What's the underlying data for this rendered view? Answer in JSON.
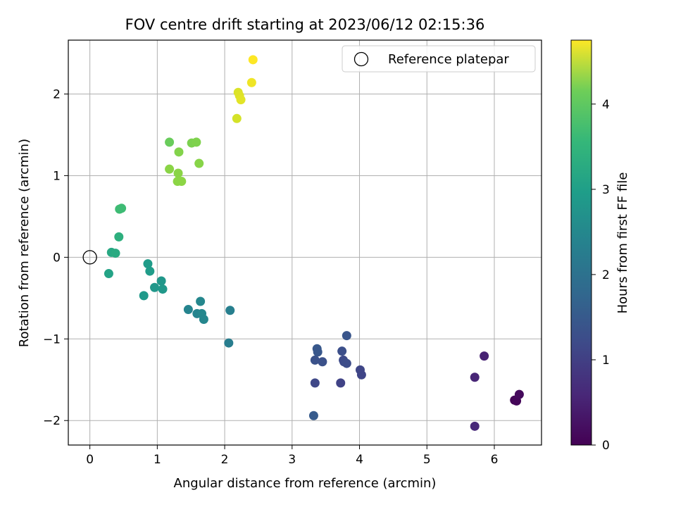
{
  "chart_data": {
    "type": "scatter",
    "title": "FOV centre drift starting at 2023/06/12 02:15:36",
    "xlabel": "Angular distance from reference (arcmin)",
    "ylabel": "Rotation from reference (arcmin)",
    "xlim": [
      -0.32,
      6.7
    ],
    "ylim": [
      -2.3,
      2.66
    ],
    "xticks": [
      0,
      1,
      2,
      3,
      4,
      5,
      6
    ],
    "yticks": [
      -2,
      -1,
      0,
      1,
      2
    ],
    "grid": true,
    "legend": {
      "placement": "top-right",
      "entries": [
        "Reference platepar"
      ]
    },
    "colorbar": {
      "label": "Hours from first FF file",
      "range": [
        0,
        4.75
      ],
      "ticks": [
        0,
        1,
        2,
        3,
        4
      ],
      "colormap": "viridis"
    },
    "reference_point": {
      "x": 0,
      "y": 0
    },
    "points": [
      {
        "x": 6.3,
        "y": -1.75,
        "h": 0.05
      },
      {
        "x": 6.33,
        "y": -1.76,
        "h": 0.08
      },
      {
        "x": 6.37,
        "y": -1.68,
        "h": 0.12
      },
      {
        "x": 5.85,
        "y": -1.21,
        "h": 0.45
      },
      {
        "x": 5.71,
        "y": -1.47,
        "h": 0.5
      },
      {
        "x": 5.71,
        "y": -2.07,
        "h": 0.55
      },
      {
        "x": 3.81,
        "y": -0.96,
        "h": 1.25
      },
      {
        "x": 3.74,
        "y": -1.15,
        "h": 1.15
      },
      {
        "x": 3.37,
        "y": -1.12,
        "h": 1.3
      },
      {
        "x": 3.38,
        "y": -1.16,
        "h": 1.28
      },
      {
        "x": 3.34,
        "y": -1.26,
        "h": 1.2
      },
      {
        "x": 3.45,
        "y": -1.28,
        "h": 1.18
      },
      {
        "x": 3.76,
        "y": -1.26,
        "h": 1.05
      },
      {
        "x": 3.77,
        "y": -1.28,
        "h": 1.08
      },
      {
        "x": 3.81,
        "y": -1.3,
        "h": 1.1
      },
      {
        "x": 4.01,
        "y": -1.38,
        "h": 1.0
      },
      {
        "x": 4.03,
        "y": -1.44,
        "h": 0.98
      },
      {
        "x": 3.72,
        "y": -1.54,
        "h": 0.95
      },
      {
        "x": 3.34,
        "y": -1.54,
        "h": 1.02
      },
      {
        "x": 3.32,
        "y": -1.94,
        "h": 1.35
      },
      {
        "x": 2.08,
        "y": -0.65,
        "h": 2.05
      },
      {
        "x": 2.06,
        "y": -1.05,
        "h": 2.0
      },
      {
        "x": 1.46,
        "y": -0.64,
        "h": 2.15
      },
      {
        "x": 1.59,
        "y": -0.69,
        "h": 2.15
      },
      {
        "x": 1.64,
        "y": -0.54,
        "h": 2.2
      },
      {
        "x": 1.66,
        "y": -0.69,
        "h": 2.2
      },
      {
        "x": 1.69,
        "y": -0.76,
        "h": 2.18
      },
      {
        "x": 1.06,
        "y": -0.29,
        "h": 2.5
      },
      {
        "x": 0.96,
        "y": -0.37,
        "h": 2.5
      },
      {
        "x": 1.08,
        "y": -0.39,
        "h": 2.52
      },
      {
        "x": 0.8,
        "y": -0.47,
        "h": 2.55
      },
      {
        "x": 0.86,
        "y": -0.08,
        "h": 2.6
      },
      {
        "x": 0.89,
        "y": -0.17,
        "h": 2.6
      },
      {
        "x": 0.28,
        "y": -0.2,
        "h": 2.75
      },
      {
        "x": 0.32,
        "y": 0.06,
        "h": 2.85
      },
      {
        "x": 0.38,
        "y": 0.05,
        "h": 2.9
      },
      {
        "x": 0.43,
        "y": 0.25,
        "h": 3.0
      },
      {
        "x": 0.44,
        "y": 0.59,
        "h": 3.25
      },
      {
        "x": 0.47,
        "y": 0.6,
        "h": 3.25
      },
      {
        "x": 1.18,
        "y": 1.41,
        "h": 3.65
      },
      {
        "x": 1.51,
        "y": 1.4,
        "h": 3.8
      },
      {
        "x": 1.58,
        "y": 1.41,
        "h": 3.82
      },
      {
        "x": 1.32,
        "y": 1.29,
        "h": 3.85
      },
      {
        "x": 1.62,
        "y": 1.15,
        "h": 3.88
      },
      {
        "x": 1.18,
        "y": 1.08,
        "h": 3.9
      },
      {
        "x": 1.31,
        "y": 1.03,
        "h": 3.9
      },
      {
        "x": 1.3,
        "y": 0.93,
        "h": 3.92
      },
      {
        "x": 1.36,
        "y": 0.93,
        "h": 3.92
      },
      {
        "x": 2.18,
        "y": 1.7,
        "h": 4.45
      },
      {
        "x": 2.2,
        "y": 2.02,
        "h": 4.5
      },
      {
        "x": 2.22,
        "y": 1.98,
        "h": 4.52
      },
      {
        "x": 2.24,
        "y": 1.93,
        "h": 4.55
      },
      {
        "x": 2.4,
        "y": 2.14,
        "h": 4.65
      },
      {
        "x": 2.42,
        "y": 2.42,
        "h": 4.75
      }
    ]
  }
}
